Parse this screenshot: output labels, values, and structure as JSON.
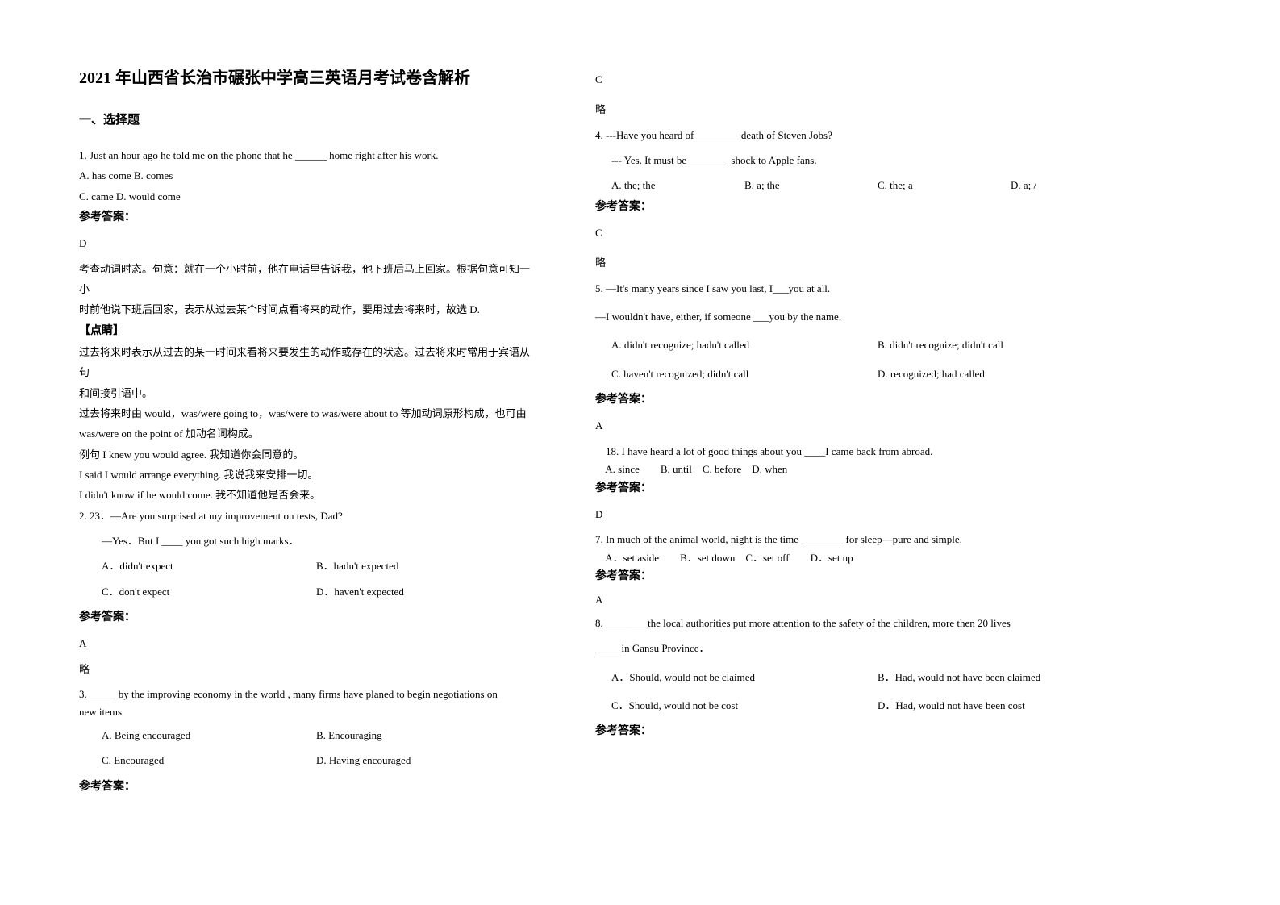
{
  "doc": {
    "title": "2021 年山西省长治市碾张中学高三英语月考试卷含解析",
    "section": "一、选择题",
    "answer_label": "参考答案：",
    "omit": "略",
    "tip_label": "【点睛】"
  },
  "q1": {
    "stem": "1. Just an hour ago he told me on the phone that he ______ home right after his work.",
    "optAB": "A. has come   B. comes",
    "optCD": "C. came   D. would come",
    "answer": "D",
    "exp1": "考查动词时态。句意：就在一个小时前，他在电话里告诉我，他下班后马上回家。根据句意可知一小",
    "exp2": "时前他说下班后回家，表示从过去某个时间点看将来的动作，要用过去将来时，故选 D.",
    "tip1": "过去将来时表示从过去的某一时间来看将来要发生的动作或存在的状态。过去将来时常用于宾语从句",
    "tip2": "和间接引语中。",
    "tip3": "过去将来时由 would，was/were going to，was/were to was/were about to 等加动词原形构成，也可由",
    "tip4": "was/were on the point of 加动名词构成。",
    "tip5": "例句   I knew you would agree. 我知道你会同意的。",
    "tip6": "I said I would arrange everything. 我说我来安排一切。",
    "tip7": "I didn't know if he would come. 我不知道他是否会来。"
  },
  "q2": {
    "stem1": "2. 23．—Are you surprised at my improvement on tests, Dad?",
    "stem2": "—Yes．But I ____ you got such high marks．",
    "optA": "A．didn't expect",
    "optB": "B．hadn't expected",
    "optC": "C．don't expect",
    "optD": "D．haven't expected",
    "answer": "A"
  },
  "q3": {
    "stem1": "3. _____ by the improving economy in the world , many firms have planed to begin negotiations on",
    "stem2": "new items",
    "optA": "A. Being encouraged",
    "optB": "B. Encouraging",
    "optC": "C. Encouraged",
    "optD": "D. Having encouraged",
    "answer": "C"
  },
  "q4": {
    "stem1": "4. ---Have you heard of ________ death of Steven Jobs?",
    "stem2": "--- Yes. It must be________ shock to Apple fans.",
    "optA": "A. the; the",
    "optB": "B. a; the",
    "optC": "C. the; a",
    "optD": "D. a; /",
    "answer": "C"
  },
  "q5": {
    "stem1": "5. —It's many years since I saw you last, I___you at all.",
    "stem2": "—I wouldn't have, either, if someone ___you by the name.",
    "optA": "A. didn't recognize; hadn't called",
    "optB": "B. didn't recognize; didn't call",
    "optC": "C. haven't recognized; didn't call",
    "optD": "D. recognized; had called",
    "answer": "A"
  },
  "q6": {
    "stem": "    18. I have heard a lot of good things about you ____I came back from abroad.",
    "opts": "    A. since        B. until    C. before    D. when",
    "answer": "D"
  },
  "q7": {
    "stem": "7. In much of the animal world, night is the time ________ for sleep—pure and simple.",
    "opts": "    A．set aside        B．set down    C．set off        D．set up",
    "answer": "A"
  },
  "q8": {
    "stem1": "8. ________the local authorities put more attention to the safety of the children, more then 20 lives",
    "stem2": "_____in Gansu Province．",
    "optA": "A．Should, would not be claimed",
    "optB": "B．Had, would not have been claimed",
    "optC": "C．Should, would not be cost",
    "optD": "D．Had, would not have been cost"
  }
}
